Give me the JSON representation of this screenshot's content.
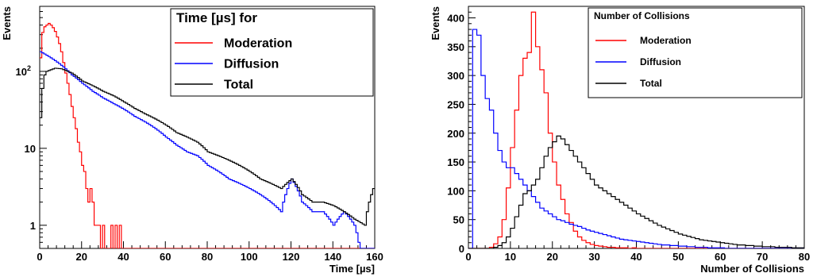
{
  "colors": {
    "moderation": "#ff0000",
    "diffusion": "#0000ff",
    "total": "#000000"
  },
  "chart_data": [
    {
      "type": "histogram",
      "ylog": true,
      "ylabel": "Events",
      "xlabel": "Time [µs]",
      "xlim": [
        0,
        160
      ],
      "ylim": [
        0.5,
        700
      ],
      "x_ticks": [
        "0",
        "20",
        "40",
        "60",
        "80",
        "100",
        "120",
        "140",
        "160"
      ],
      "y_ticks": [
        {
          "value": 1,
          "label": "1"
        },
        {
          "value": 10,
          "label": "10"
        },
        {
          "value": 100,
          "label": "10",
          "sup": "2"
        }
      ],
      "bin_width": 1,
      "legend": {
        "title": "Time [µs] for",
        "position": "top-right",
        "entries": [
          "Moderation",
          "Diffusion",
          "Total"
        ]
      },
      "series": [
        {
          "name": "Moderation",
          "color_key": "moderation",
          "x": [
            0,
            1,
            2,
            3,
            4,
            5,
            6,
            7,
            8,
            9,
            10,
            11,
            12,
            13,
            14,
            15,
            16,
            17,
            18,
            19,
            20,
            21,
            22,
            23,
            24,
            25,
            26,
            27,
            28,
            29,
            30,
            31,
            32,
            33,
            34,
            35,
            36,
            37,
            38,
            39,
            40
          ],
          "values": [
            150,
            320,
            380,
            400,
            420,
            400,
            370,
            330,
            280,
            230,
            180,
            130,
            95,
            70,
            50,
            35,
            25,
            18,
            12,
            9,
            6,
            5,
            3,
            2,
            3,
            2,
            1,
            1,
            1,
            0,
            1,
            0,
            0,
            0,
            1,
            0,
            1,
            0,
            1,
            0,
            0
          ]
        },
        {
          "name": "Diffusion",
          "color_key": "diffusion",
          "x": [
            0,
            5,
            10,
            15,
            20,
            25,
            30,
            35,
            40,
            45,
            50,
            55,
            60,
            65,
            70,
            75,
            80,
            85,
            90,
            95,
            100,
            105,
            110,
            115,
            120,
            125,
            130,
            135,
            140,
            145,
            150,
            155
          ],
          "values": [
            180,
            150,
            120,
            90,
            70,
            55,
            45,
            38,
            32,
            26,
            22,
            18,
            14,
            11,
            9,
            8,
            6,
            5,
            4,
            3.5,
            3,
            2.5,
            2,
            1.5,
            4,
            2,
            1.5,
            1.5,
            1,
            1.5,
            1,
            0
          ]
        },
        {
          "name": "Total",
          "color_key": "total",
          "x": [
            0,
            1,
            2,
            3,
            5,
            7,
            10,
            15,
            20,
            25,
            30,
            35,
            40,
            45,
            50,
            55,
            60,
            65,
            70,
            75,
            80,
            85,
            90,
            95,
            100,
            105,
            110,
            115,
            120,
            125,
            130,
            135,
            140,
            145,
            150,
            155,
            159
          ],
          "values": [
            25,
            60,
            90,
            100,
            105,
            110,
            108,
            95,
            75,
            65,
            55,
            48,
            40,
            33,
            28,
            24,
            20,
            16,
            14,
            12,
            9,
            8,
            7,
            6,
            5,
            4,
            3.5,
            3,
            4,
            2.5,
            2,
            2,
            1.8,
            1.5,
            1.2,
            1,
            3
          ]
        }
      ]
    },
    {
      "type": "histogram",
      "ylog": false,
      "ylabel": "Events",
      "xlabel": "Number of Collisions",
      "xlim": [
        0,
        80
      ],
      "ylim": [
        0,
        420
      ],
      "x_ticks": [
        "0",
        "10",
        "20",
        "30",
        "40",
        "50",
        "60",
        "70",
        "80"
      ],
      "y_ticks": [
        {
          "value": 0,
          "label": "0"
        },
        {
          "value": 50,
          "label": "50"
        },
        {
          "value": 100,
          "label": "100"
        },
        {
          "value": 150,
          "label": "150"
        },
        {
          "value": 200,
          "label": "200"
        },
        {
          "value": 250,
          "label": "250"
        },
        {
          "value": 300,
          "label": "300"
        },
        {
          "value": 350,
          "label": "350"
        },
        {
          "value": 400,
          "label": "400"
        }
      ],
      "bin_width": 1,
      "legend": {
        "title": "Number of Collisions",
        "position": "top-right",
        "entries": [
          "Moderation",
          "Diffusion",
          "Total"
        ]
      },
      "series": [
        {
          "name": "Moderation",
          "color_key": "moderation",
          "x": [
            0,
            1,
            2,
            3,
            4,
            5,
            6,
            7,
            8,
            9,
            10,
            11,
            12,
            13,
            14,
            15,
            16,
            17,
            18,
            19,
            20,
            21,
            22,
            23,
            24,
            25,
            26,
            27,
            28,
            29,
            30,
            31,
            32,
            33,
            34,
            35,
            36,
            37,
            38,
            39,
            40,
            41,
            42,
            43,
            44,
            45
          ],
          "values": [
            0,
            0,
            0,
            0,
            0,
            2,
            8,
            20,
            50,
            105,
            175,
            240,
            300,
            330,
            340,
            410,
            350,
            310,
            270,
            200,
            150,
            110,
            85,
            60,
            45,
            30,
            20,
            14,
            10,
            7,
            5,
            4,
            3,
            2,
            2,
            1,
            1,
            1,
            0,
            1,
            0,
            0,
            0,
            0,
            0,
            0
          ]
        },
        {
          "name": "Diffusion",
          "color_key": "diffusion",
          "x": [
            0,
            1,
            2,
            3,
            4,
            5,
            6,
            7,
            8,
            9,
            10,
            11,
            12,
            13,
            14,
            15,
            16,
            17,
            18,
            19,
            20,
            21,
            22,
            23,
            24,
            25,
            26,
            27,
            28,
            29,
            30,
            31,
            32,
            33,
            34,
            35,
            36,
            37,
            38,
            39,
            40,
            41,
            42,
            43,
            44,
            45,
            46,
            47,
            48,
            49,
            50,
            51,
            52,
            53,
            54,
            55,
            56,
            57,
            58,
            59,
            60
          ],
          "values": [
            0,
            380,
            370,
            300,
            260,
            240,
            200,
            170,
            150,
            140,
            140,
            130,
            120,
            110,
            100,
            90,
            80,
            70,
            65,
            60,
            55,
            50,
            48,
            45,
            42,
            40,
            38,
            35,
            32,
            30,
            28,
            26,
            24,
            22,
            20,
            18,
            16,
            15,
            14,
            13,
            12,
            11,
            10,
            9,
            8,
            7,
            6,
            6,
            5,
            5,
            4,
            4,
            3,
            3,
            2,
            2,
            2,
            1,
            1,
            1,
            1
          ]
        },
        {
          "name": "Total",
          "color_key": "total",
          "x": [
            0,
            1,
            2,
            3,
            4,
            5,
            6,
            7,
            8,
            9,
            10,
            11,
            12,
            13,
            14,
            15,
            16,
            17,
            18,
            19,
            20,
            21,
            22,
            23,
            24,
            25,
            26,
            27,
            28,
            29,
            30,
            31,
            32,
            33,
            34,
            35,
            36,
            37,
            38,
            39,
            40,
            41,
            42,
            43,
            44,
            45,
            46,
            47,
            48,
            49,
            50,
            51,
            52,
            53,
            54,
            55,
            56,
            57,
            58,
            59,
            60,
            61,
            62,
            63,
            64,
            65,
            66,
            67,
            68,
            69,
            70,
            71,
            72,
            73,
            74,
            75,
            76,
            77,
            78,
            79
          ],
          "values": [
            0,
            0,
            0,
            0,
            0,
            0,
            2,
            5,
            10,
            20,
            35,
            55,
            75,
            95,
            100,
            110,
            120,
            140,
            160,
            175,
            185,
            195,
            190,
            180,
            170,
            160,
            150,
            140,
            130,
            120,
            110,
            105,
            100,
            95,
            90,
            85,
            80,
            75,
            70,
            65,
            60,
            56,
            52,
            48,
            44,
            40,
            37,
            34,
            31,
            28,
            25,
            23,
            21,
            19,
            17,
            15,
            14,
            13,
            12,
            11,
            10,
            9,
            8,
            7,
            6,
            6,
            5,
            5,
            4,
            4,
            3,
            3,
            3,
            2,
            2,
            2,
            2,
            1,
            1,
            1
          ]
        }
      ]
    }
  ]
}
